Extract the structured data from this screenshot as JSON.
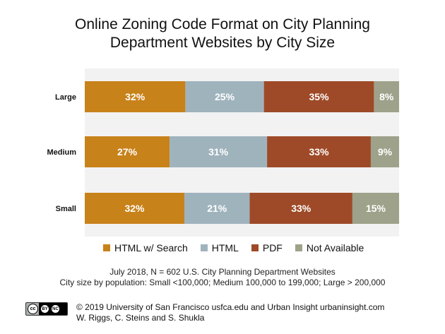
{
  "chart_data": {
    "type": "bar",
    "orientation": "horizontal",
    "stacked": true,
    "title_line1": "Online Zoning Code Format on City Planning",
    "title_line2": "Department Websites by City Size",
    "categories": [
      "Large",
      "Medium",
      "Small"
    ],
    "series": [
      {
        "name": "HTML w/ Search",
        "color": "#c8821a",
        "values": [
          32,
          27,
          32
        ],
        "labels": [
          "32%",
          "27%",
          "32%"
        ]
      },
      {
        "name": "HTML",
        "color": "#9fb3bd",
        "values": [
          25,
          31,
          21
        ],
        "labels": [
          "25%",
          "31%",
          "21%"
        ]
      },
      {
        "name": "PDF",
        "color": "#9e4a28",
        "values": [
          35,
          33,
          33
        ],
        "labels": [
          "35%",
          "33%",
          "33%"
        ]
      },
      {
        "name": "Not Available",
        "color": "#9ea28a",
        "values": [
          8,
          9,
          15
        ],
        "labels": [
          "8%",
          "9%",
          "15%"
        ]
      }
    ],
    "xlim": [
      0,
      100
    ],
    "legend_position": "bottom",
    "grid": false,
    "background_band": "#f2f2f2"
  },
  "footnote": {
    "line1": "July 2018, N = 602 U.S. City Planning Department Websites",
    "line2": "City size by population:  Small <100,000; Medium 100,000 to 199,000; Large > 200,000"
  },
  "license": {
    "cc": "cc",
    "by": "BY",
    "nc": "NC"
  },
  "credit": {
    "line1": "© 2019 University of San Francisco usfca.edu and Urban Insight urbaninsight.com",
    "line2": "W. Riggs, C. Steins and S. Shukla"
  }
}
